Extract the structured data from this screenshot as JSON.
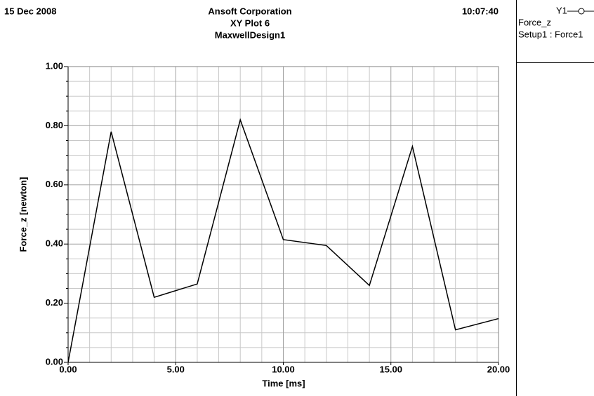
{
  "chart_data": {
    "type": "line",
    "header": {
      "date": "15 Dec 2008",
      "time": "10:07:40"
    },
    "title": "Ansoft Corporation",
    "subtitle": [
      "XY Plot 6",
      "MaxwellDesign1"
    ],
    "x_label": "Time [ms]",
    "y_label": "Force_z [newton]",
    "x": [
      0,
      2,
      4,
      6,
      8,
      10,
      12,
      14,
      16,
      18,
      20
    ],
    "series": [
      {
        "name": "Setup1 : Force1",
        "color": "#000000",
        "values": [
          0,
          0.78,
          0.22,
          0.265,
          0.82,
          0.415,
          0.395,
          0.26,
          0.73,
          0.11,
          0.148
        ]
      }
    ],
    "legend": {
      "axis": "Y1",
      "title": "Force_z"
    },
    "xlim": [
      0,
      20
    ],
    "xticks": [
      {
        "value": 0,
        "label": "0.00"
      },
      {
        "value": 5,
        "label": "5.00"
      },
      {
        "value": 10,
        "label": "10.00"
      },
      {
        "value": 15,
        "label": "15.00"
      },
      {
        "value": 20,
        "label": "20.00"
      }
    ],
    "ylim": [
      0,
      1
    ],
    "yticks": [
      {
        "value": 0,
        "label": "0.00"
      },
      {
        "value": 0.2,
        "label": "0.20"
      },
      {
        "value": 0.4,
        "label": "0.40"
      },
      {
        "value": 0.6,
        "label": "0.60"
      },
      {
        "value": 0.8,
        "label": "0.80"
      },
      {
        "value": 1,
        "label": "1.00"
      }
    ],
    "grid": true
  }
}
